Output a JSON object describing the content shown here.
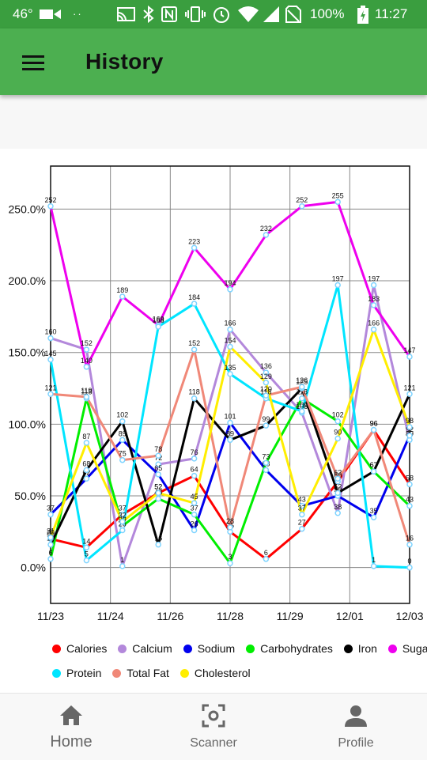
{
  "status_bar": {
    "temperature": "46°",
    "battery": "100%",
    "time": "11:27"
  },
  "app_bar": {
    "title": "History"
  },
  "bottom_nav": {
    "items": [
      {
        "label": "Home",
        "icon": "home-icon",
        "active": true
      },
      {
        "label": "Scanner",
        "icon": "scanner-icon",
        "active": false
      },
      {
        "label": "Profile",
        "icon": "profile-icon",
        "active": false
      }
    ]
  },
  "colors": {
    "primary": "#4caf50",
    "primary_dark": "#3a9e3f"
  },
  "chart_data": {
    "type": "line",
    "x_tick_labels": [
      "11/23",
      "11/24",
      "11/26",
      "11/28",
      "11/29",
      "12/01",
      "12/03"
    ],
    "y_tick_labels": [
      "0.0%",
      "50.0%",
      "100.0%",
      "150.0%",
      "200.0%",
      "250.0%"
    ],
    "ylim": [
      -25,
      280
    ],
    "grid": true,
    "legend_placement": "bottom",
    "point_labels": "rounded value",
    "series": [
      {
        "name": "Calories",
        "color": "#ff0000",
        "values": [
          20,
          14,
          37,
          52,
          64,
          25,
          6,
          27,
          60,
          96,
          58
        ]
      },
      {
        "name": "Calcium",
        "color": "#b388db",
        "values": [
          160,
          152,
          1,
          72,
          76,
          166,
          136,
          108,
          38,
          197,
          89
        ]
      },
      {
        "name": "Sodium",
        "color": "#0000ee",
        "values": [
          37,
          62,
          89,
          65,
          26,
          101,
          68,
          43,
          50,
          35,
          92
        ]
      },
      {
        "name": "Carbohydrates",
        "color": "#00ee00",
        "values": [
          6,
          118,
          29,
          48,
          37,
          3,
          73,
          118,
          102,
          67,
          43
        ]
      },
      {
        "name": "Iron",
        "color": "#000000",
        "values": [
          16,
          68,
          102,
          16,
          118,
          89,
          99,
          125,
          52,
          67,
          121
        ]
      },
      {
        "name": "Sugar",
        "color": "#ee00ee",
        "values": [
          252,
          140,
          189,
          169,
          223,
          194,
          232,
          252,
          255,
          183,
          147
        ]
      },
      {
        "name": "Protein",
        "color": "#00e5ff",
        "values": [
          145,
          5,
          26,
          168,
          184,
          135,
          118,
          109,
          197,
          1,
          0
        ]
      },
      {
        "name": "Total Fat",
        "color": "#f08878",
        "values": [
          121,
          119,
          75,
          78,
          152,
          28,
          120,
          126,
          62,
          96,
          16
        ]
      },
      {
        "name": "Cholesterol",
        "color": "#ffee00",
        "values": [
          21,
          87,
          32,
          52,
          45,
          154,
          129,
          37,
          90,
          166,
          98
        ]
      }
    ]
  }
}
